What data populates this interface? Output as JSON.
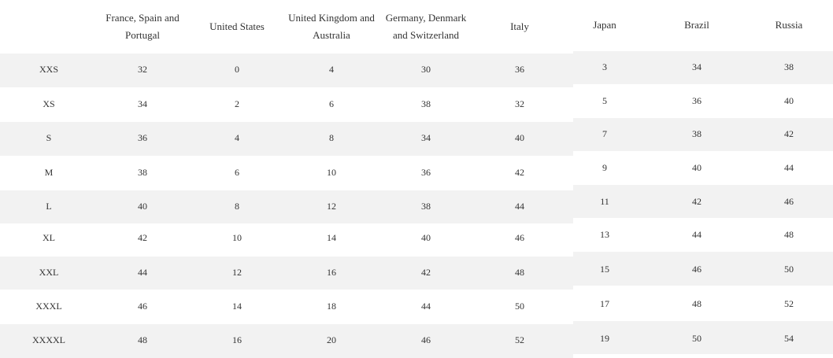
{
  "table": {
    "headers": [
      "France, Spain and Portugal",
      "United States",
      "United Kingdom and Australia",
      "Germany, Denmark and Switzerland",
      "Italy",
      "Japan",
      "Brazil",
      "Russia"
    ],
    "rows": [
      [
        "XXS",
        32,
        0,
        4,
        30,
        36,
        3,
        34,
        38
      ],
      [
        "XS",
        34,
        2,
        6,
        38,
        32,
        5,
        36,
        40
      ],
      [
        "S",
        36,
        4,
        8,
        34,
        40,
        7,
        38,
        42
      ],
      [
        "M",
        38,
        6,
        10,
        36,
        42,
        9,
        40,
        44
      ],
      [
        "L",
        40,
        8,
        12,
        38,
        44,
        11,
        42,
        46
      ],
      [
        "XL",
        42,
        10,
        14,
        40,
        46,
        13,
        44,
        48
      ],
      [
        "XXL",
        44,
        12,
        16,
        42,
        48,
        15,
        46,
        50
      ],
      [
        "XXXL",
        46,
        14,
        18,
        44,
        50,
        17,
        48,
        52
      ],
      [
        "XXXXL",
        48,
        16,
        20,
        46,
        52,
        19,
        50,
        54
      ]
    ]
  }
}
